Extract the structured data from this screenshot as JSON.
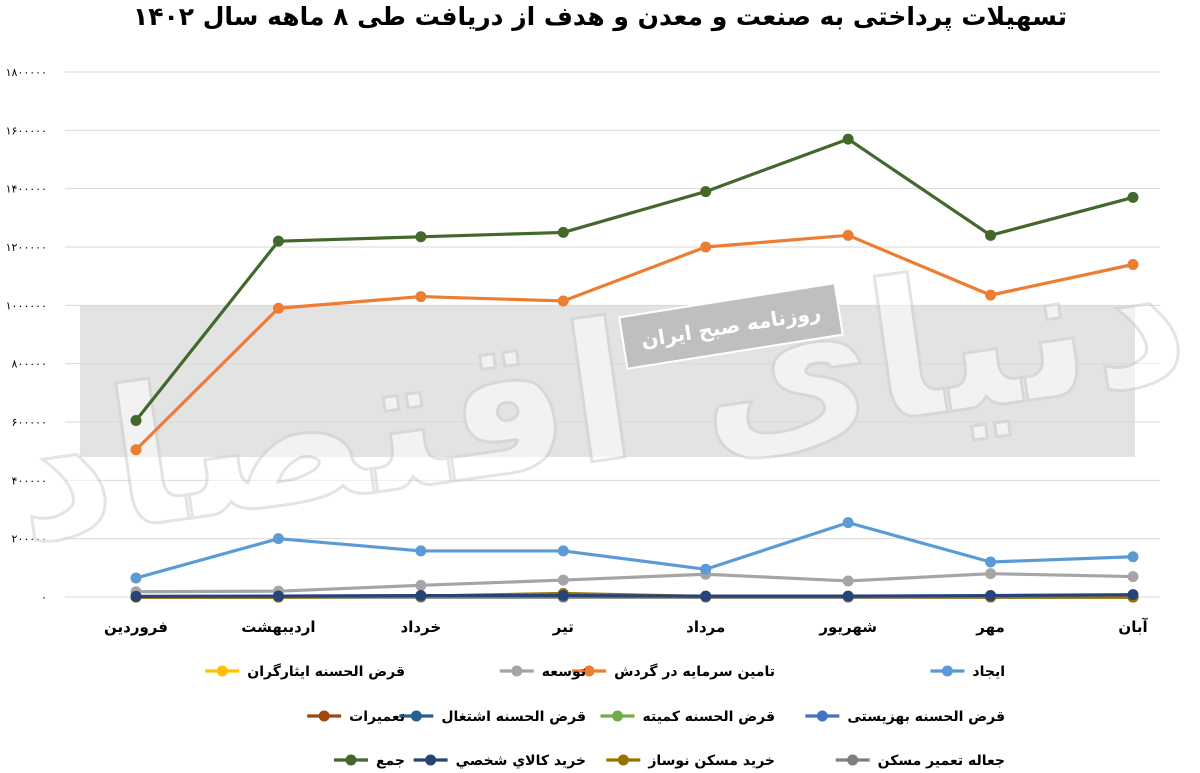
{
  "chart_data": {
    "type": "line",
    "title": "تسهیلات پرداختی به صنعت و معدن و هدف از دریافت طی ۸ ماهه سال ۱۴۰۲",
    "categories": [
      "فروردین",
      "اردیبهشت",
      "خرداد",
      "تیر",
      "مرداد",
      "شهریور",
      "مهر",
      "آبان"
    ],
    "ylim": [
      0,
      1800000
    ],
    "yticks": [
      0,
      200000,
      400000,
      600000,
      800000,
      1000000,
      1200000,
      1400000,
      1600000,
      1800000
    ],
    "ytick_labels": [
      "۰",
      "۲۰۰۰۰۰",
      "۴۰۰۰۰۰",
      "۶۰۰۰۰۰",
      "۸۰۰۰۰۰",
      "۱۰۰۰۰۰۰",
      "۱۲۰۰۰۰۰",
      "۱۴۰۰۰۰۰",
      "۱۶۰۰۰۰۰",
      "۱۸۰۰۰۰۰"
    ],
    "grid": true,
    "legend_position": "bottom",
    "series": [
      {
        "name": "ایجاد",
        "color": "#5B9BD5",
        "values": [
          65000,
          200000,
          158000,
          158000,
          95000,
          255000,
          120000,
          138000
        ]
      },
      {
        "name": "تامین سرمایه در گردش",
        "color": "#ED7D31",
        "values": [
          505000,
          990000,
          1030000,
          1015000,
          1200000,
          1240000,
          1035000,
          1140000
        ]
      },
      {
        "name": "توسعه",
        "color": "#A5A5A5",
        "values": [
          18000,
          20000,
          40000,
          58000,
          78000,
          55000,
          80000,
          70000
        ]
      },
      {
        "name": "قرض الحسنه ایثارگران",
        "color": "#FFC000",
        "values": [
          0,
          0,
          0,
          0,
          0,
          0,
          0,
          0
        ]
      },
      {
        "name": "قرض الحسنه بهزیستی",
        "color": "#4472C4",
        "values": [
          0,
          0,
          0,
          0,
          0,
          0,
          0,
          0
        ]
      },
      {
        "name": "قرض الحسنه کمیته",
        "color": "#70AD47",
        "values": [
          0,
          0,
          0,
          0,
          0,
          0,
          0,
          0
        ]
      },
      {
        "name": "قرض الحسنه اشتغال",
        "color": "#255E91",
        "values": [
          2000,
          3000,
          4000,
          3000,
          2000,
          2000,
          2000,
          3000
        ]
      },
      {
        "name": "تعمیرات",
        "color": "#9E480E",
        "values": [
          0,
          0,
          1000,
          1000,
          0,
          0,
          0,
          0
        ]
      },
      {
        "name": "جعاله تعمیر مسکن",
        "color": "#7F7F7F",
        "values": [
          0,
          0,
          0,
          0,
          0,
          0,
          0,
          0
        ]
      },
      {
        "name": "خرید مسکن نوساز",
        "color": "#997300",
        "values": [
          0,
          0,
          3000,
          12000,
          2000,
          2000,
          0,
          0
        ]
      },
      {
        "name": "خرید کالاي شخصي",
        "color": "#264478",
        "values": [
          2000,
          3000,
          5000,
          5000,
          3000,
          3000,
          5000,
          8000
        ]
      },
      {
        "name": "جمع",
        "color": "#43682B",
        "values": [
          605000,
          1220000,
          1235000,
          1250000,
          1390000,
          1570000,
          1240000,
          1370000
        ]
      }
    ],
    "legend_order": [
      [
        "ایجاد",
        "تامین سرمایه در گردش",
        "توسعه",
        "قرض الحسنه ایثارگران"
      ],
      [
        "قرض الحسنه بهزیستی",
        "قرض الحسنه کمیته",
        "قرض الحسنه اشتغال",
        "تعمیرات"
      ],
      [
        "جعاله تعمیر مسکن",
        "خرید مسکن نوساز",
        "خرید کالاي شخصي",
        "جمع"
      ]
    ]
  },
  "watermark": {
    "logo_text": "دنیای اقتصاد",
    "label": "روزنامه صبح ایران"
  }
}
